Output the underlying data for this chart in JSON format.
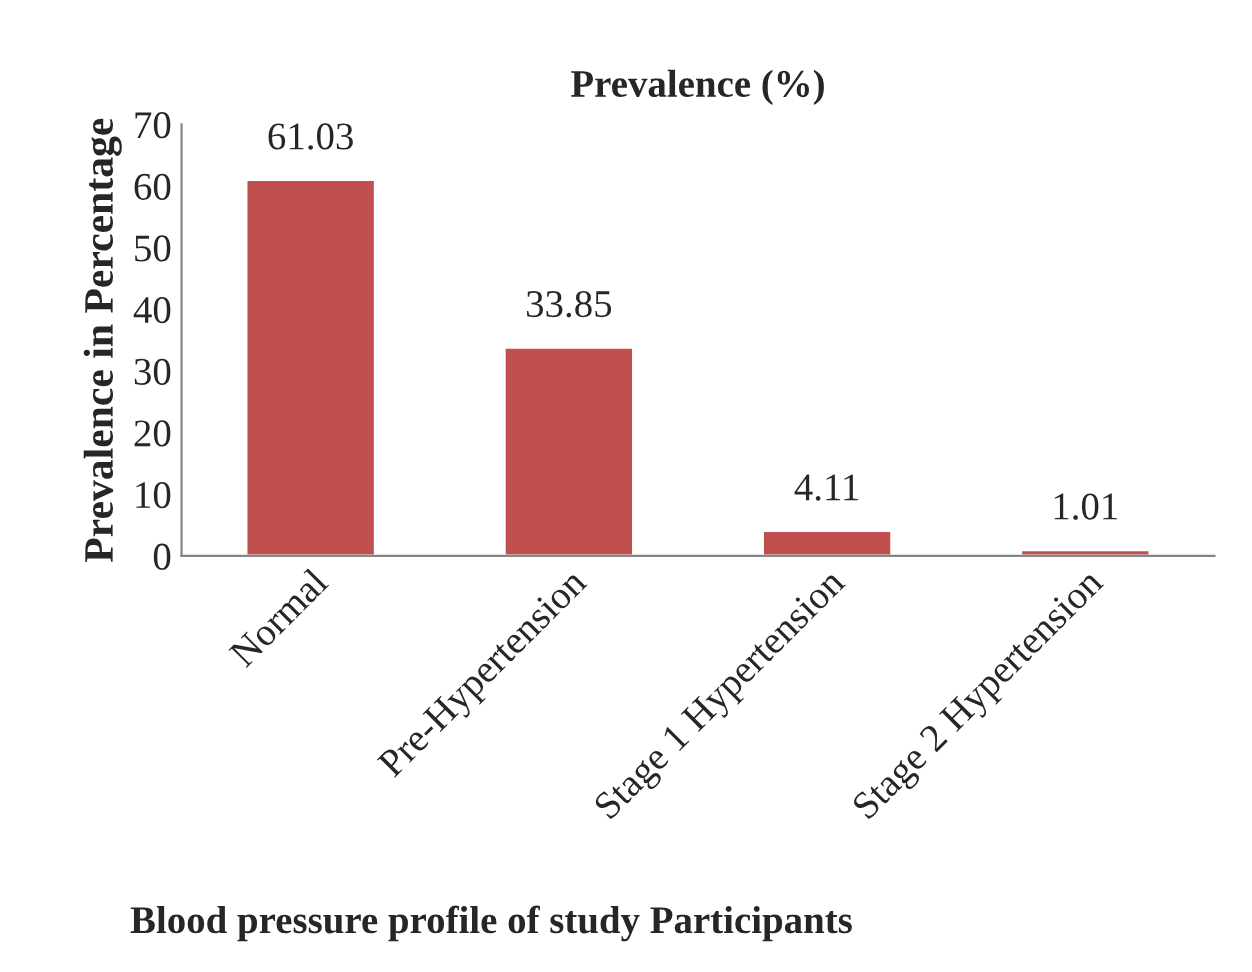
{
  "chart_data": {
    "type": "bar",
    "title": "Prevalence (%)",
    "xlabel": "Blood pressure profile of study Participants",
    "ylabel": "Prevalence in Percentage",
    "categories": [
      "Normal",
      "Pre-Hypertension",
      "Stage 1 Hypertension",
      "Stage 2 Hypertension"
    ],
    "values": [
      61.03,
      33.85,
      4.11,
      1.01
    ],
    "color": "#c0504d",
    "ylim": [
      0,
      70
    ],
    "yticks": [
      0,
      10,
      20,
      30,
      40,
      50,
      60,
      70
    ],
    "data_labels": true,
    "grid": false,
    "legend": false
  }
}
